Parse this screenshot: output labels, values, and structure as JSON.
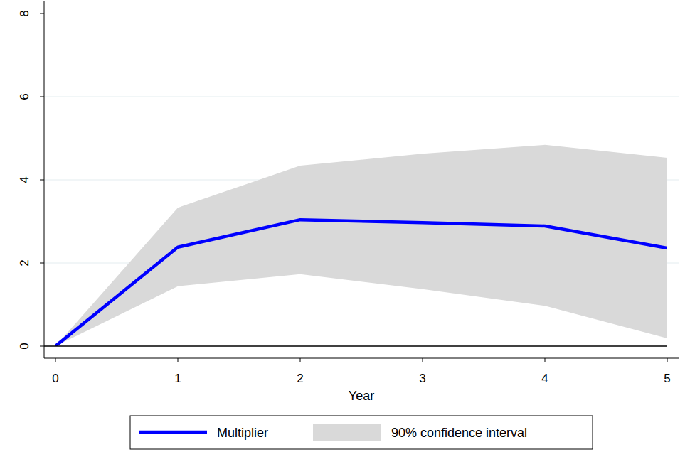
{
  "chart_data": {
    "type": "line",
    "x_label": "Year",
    "x": [
      0,
      1,
      2,
      3,
      4,
      5
    ],
    "xlim": [
      0,
      5
    ],
    "xticks": [
      0,
      1,
      2,
      3,
      4,
      5
    ],
    "ylim": [
      0,
      8
    ],
    "yticks": [
      0,
      2,
      4,
      6,
      8
    ],
    "grid": true,
    "legend": "bottom",
    "series": [
      {
        "name": "Multiplier",
        "type": "line",
        "color": "#0000ff",
        "values": [
          0,
          2.38,
          3.04,
          2.97,
          2.89,
          2.36
        ]
      },
      {
        "name": "90% confidence interval",
        "type": "area",
        "color": "#d9d9d9",
        "lower": [
          0,
          1.44,
          1.73,
          1.37,
          0.97,
          0.19
        ],
        "upper": [
          0,
          3.33,
          4.34,
          4.63,
          4.84,
          4.53
        ]
      }
    ]
  }
}
